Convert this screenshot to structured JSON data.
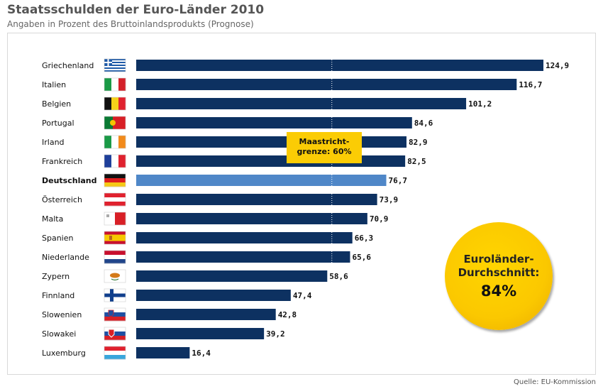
{
  "title": "Staatsschulden der Euro-Länder 2010",
  "subtitle": "Angaben in Prozent des Bruttoinlandsprodukts (Prognose)",
  "source": "Quelle: EU-Kommission",
  "callout": "Maastricht-\ngrenze: 60%",
  "average": {
    "label": "Euroländer-\nDurchschnitt:",
    "value": "84%"
  },
  "colors": {
    "bar": "#0d3161",
    "highlight": "#4f87c8",
    "accent": "#fbcc05",
    "gridline": "#ffffff"
  },
  "chart_data": {
    "type": "bar",
    "orientation": "horizontal",
    "categories": [
      "Griechenland",
      "Italien",
      "Belgien",
      "Portugal",
      "Irland",
      "Frankreich",
      "Deutschland",
      "Österreich",
      "Malta",
      "Spanien",
      "Niederlande",
      "Zypern",
      "Finnland",
      "Slowenien",
      "Slowakei",
      "Luxemburg"
    ],
    "values": [
      124.9,
      116.7,
      101.2,
      84.6,
      82.9,
      82.5,
      76.7,
      73.9,
      70.9,
      66.3,
      65.6,
      58.6,
      47.4,
      42.8,
      39.2,
      16.4
    ],
    "value_labels": [
      "124,9",
      "116,7",
      "101,2",
      "84,6",
      "82,9",
      "82,5",
      "76,7",
      "73,9",
      "70,9",
      "66,3",
      "65,6",
      "58,6",
      "47,4",
      "42,8",
      "39,2",
      "16,4"
    ],
    "highlight": "Deutschland",
    "reference_line": 60,
    "xlim": [
      0,
      124.9
    ],
    "flags": [
      "greece-flag",
      "italy-flag",
      "belgium-flag",
      "portugal-flag",
      "ireland-flag",
      "france-flag",
      "germany-flag",
      "austria-flag",
      "malta-flag",
      "spain-flag",
      "netherlands-flag",
      "cyprus-flag",
      "finland-flag",
      "slovenia-flag",
      "slovakia-flag",
      "luxembourg-flag"
    ],
    "grid": false,
    "legend": "none"
  }
}
